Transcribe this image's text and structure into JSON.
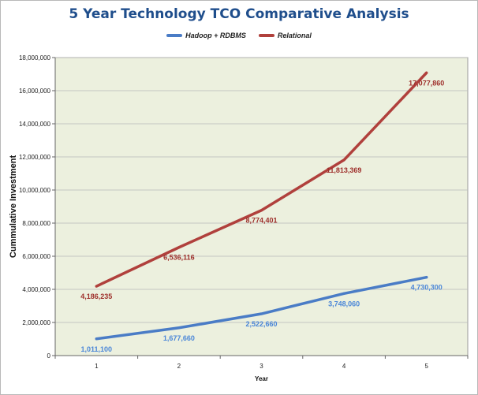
{
  "chart_data": {
    "type": "line",
    "title": "5 Year Technology TCO Comparative Analysis",
    "xlabel": "Year",
    "ylabel": "Cummulative Investment",
    "x": [
      "1",
      "2",
      "3",
      "4",
      "5"
    ],
    "ylim": [
      0,
      18000000
    ],
    "yticks": [
      0,
      2000000,
      4000000,
      6000000,
      8000000,
      10000000,
      12000000,
      14000000,
      16000000,
      18000000
    ],
    "ytick_labels": [
      "0",
      "2,000,000",
      "4,000,000",
      "6,000,000",
      "8,000,000",
      "10,000,000",
      "12,000,000",
      "14,000,000",
      "16,000,000",
      "18,000,000"
    ],
    "grid": true,
    "legend_position": "top-center",
    "plot_background": "#ecf0de",
    "series": [
      {
        "name": "Hadoop + RDBMS",
        "color": "#4a7cc6",
        "label_color": "#4a86d8",
        "values": [
          1011100,
          1677660,
          2522660,
          3748060,
          4730300
        ],
        "labels": [
          "1,011,100",
          "1,677,660",
          "2,522,660",
          "3,748,060",
          "4,730,300"
        ]
      },
      {
        "name": "Relational",
        "color": "#b0403c",
        "label_color": "#9e2f2b",
        "values": [
          4186235,
          6536116,
          8774401,
          11813369,
          17077860
        ],
        "labels": [
          "4,186,235",
          "6,536,116",
          "8,774,401",
          "11,813,369",
          "17,077,860"
        ]
      }
    ]
  }
}
